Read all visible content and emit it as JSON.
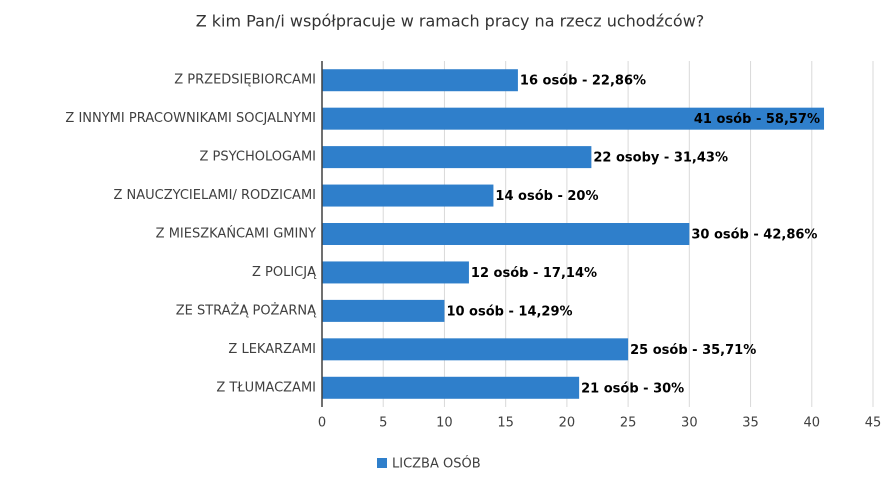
{
  "chart_data": {
    "type": "bar",
    "orientation": "horizontal",
    "title": "Z kim Pan/i współpracuje w ramach pracy na rzecz uchodźców?",
    "categories": [
      "Z PRZEDSIĘBIORCAMI",
      "Z INNYMI PRACOWNIKAMI SOCJALNYMI",
      "Z PSYCHOLOGAMI",
      "Z NAUCZYCIELAMI/ RODZICAMI",
      "Z MIESZKAŃCAMI GMINY",
      "Z POLICJĄ",
      "ZE STRAŻĄ POŻARNĄ",
      "Z LEKARZAMI",
      "Z TŁUMACZAMI"
    ],
    "series": [
      {
        "name": "LICZBA OSÓB",
        "color": "#2f7fcb",
        "values": [
          16,
          41,
          22,
          14,
          30,
          12,
          10,
          25,
          21
        ],
        "value_labels": [
          "16 osób - 22,86%",
          "41 osób - 58,57%",
          "22 osoby - 31,43%",
          "14 osób - 20%",
          "30 osób - 42,86%",
          "12 osób - 17,14%",
          "10 osób - 14,29%",
          "25 osób - 35,71%",
          "21 osób - 30%"
        ]
      }
    ],
    "xlim": [
      0,
      45
    ],
    "xticks": [
      0,
      5,
      10,
      15,
      20,
      25,
      30,
      35,
      40,
      45
    ],
    "grid": true,
    "legend": "bottom"
  }
}
